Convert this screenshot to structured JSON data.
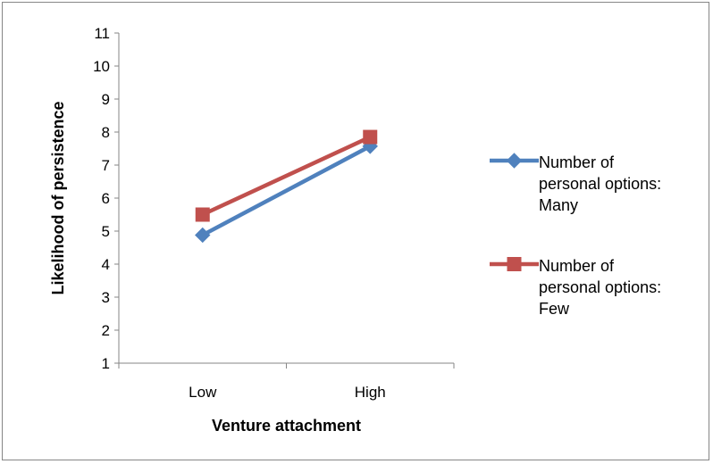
{
  "chart_data": {
    "type": "line",
    "title": "",
    "xlabel": "Venture attachment",
    "ylabel": "Likelihood of persistence",
    "categories": [
      "Low",
      "High"
    ],
    "ylim": [
      1,
      11
    ],
    "yticks": [
      1,
      2,
      3,
      4,
      5,
      6,
      7,
      8,
      9,
      10,
      11
    ],
    "grid": false,
    "legend_position": "right",
    "series": [
      {
        "name_lines": [
          "Number of",
          "personal options:",
          "Many"
        ],
        "values": [
          4.88,
          7.57
        ],
        "color": "#4f81bd",
        "marker": "diamond"
      },
      {
        "name_lines": [
          "Number of",
          "personal options:",
          "Few"
        ],
        "values": [
          5.5,
          7.85
        ],
        "color": "#c0504d",
        "marker": "square"
      }
    ]
  }
}
